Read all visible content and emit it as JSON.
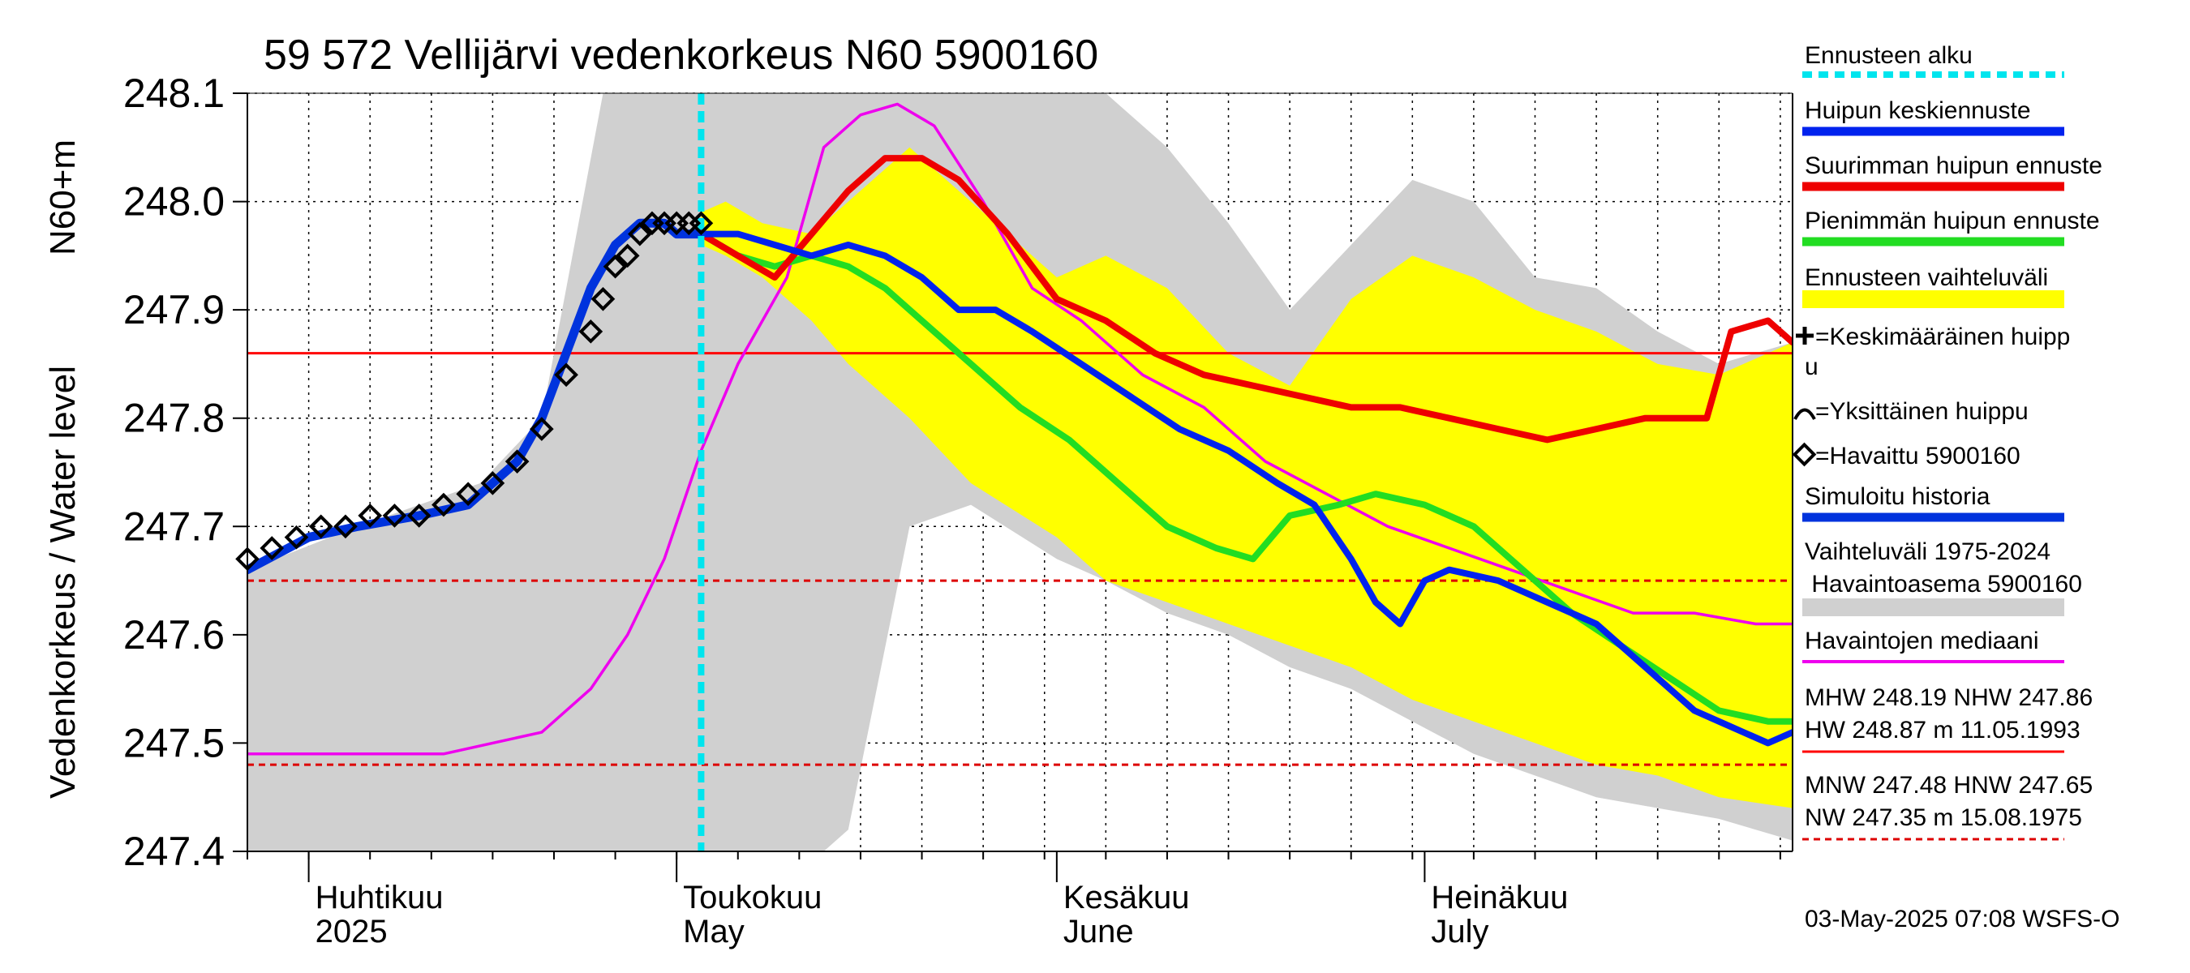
{
  "chart_data": {
    "type": "line",
    "title": "59 572 Vellijärvi vedenkorkeus N60 5900160",
    "ylabel": "Vedenkorkeus / Water level",
    "yunit": "N60+m",
    "ylim": [
      247.4,
      248.1
    ],
    "yticks": [
      "247.4",
      "247.5",
      "247.6",
      "247.7",
      "247.8",
      "247.9",
      "248.0",
      "248.1"
    ],
    "xlim": [
      "2025-03-27",
      "2025-07-31"
    ],
    "grid": true,
    "month_labels": [
      {
        "date": "2025-04-01",
        "fi": "Huhtikuu",
        "en": "2025"
      },
      {
        "date": "2025-05-01",
        "fi": "Toukokuu",
        "en": "May"
      },
      {
        "date": "2025-06-01",
        "fi": "Kesäkuu",
        "en": "June"
      },
      {
        "date": "2025-07-01",
        "fi": "Heinäkuu",
        "en": "July"
      }
    ],
    "forecast_start": "2025-05-03",
    "reference_lines": [
      {
        "label": "NHW",
        "value": 247.86,
        "color": "#ff0000",
        "style": "solid"
      },
      {
        "label": "HNW",
        "value": 247.65,
        "color": "#dd0000",
        "style": "dashed"
      },
      {
        "label": "MNW",
        "value": 247.48,
        "color": "#dd0000",
        "style": "dashed"
      }
    ],
    "historical_range": {
      "name": "Vaihteluväli 1975-2024 Havaintoasema 5900160",
      "color": "#d0d0d0",
      "x": [
        "2025-03-27",
        "2025-04-05",
        "2025-04-10",
        "2025-04-15",
        "2025-04-20",
        "2025-04-25",
        "2025-04-28",
        "2025-05-01",
        "2025-05-05",
        "2025-05-10",
        "2025-05-13",
        "2025-05-15",
        "2025-05-20",
        "2025-05-25",
        "2025-06-01",
        "2025-06-05",
        "2025-06-10",
        "2025-06-15",
        "2025-06-20",
        "2025-06-25",
        "2025-06-30",
        "2025-07-05",
        "2025-07-10",
        "2025-07-15",
        "2025-07-20",
        "2025-07-25",
        "2025-07-31"
      ],
      "upper": [
        247.66,
        247.7,
        247.72,
        247.74,
        247.8,
        248.1,
        248.1,
        248.1,
        248.1,
        248.1,
        248.1,
        248.1,
        248.1,
        248.1,
        248.1,
        248.1,
        248.05,
        247.98,
        247.9,
        247.96,
        248.02,
        248.0,
        247.93,
        247.92,
        247.88,
        247.85,
        247.87
      ],
      "lower": [
        247.4,
        247.4,
        247.4,
        247.4,
        247.4,
        247.4,
        247.4,
        247.4,
        247.4,
        247.4,
        247.4,
        247.42,
        247.7,
        247.72,
        247.67,
        247.65,
        247.62,
        247.6,
        247.57,
        247.55,
        247.52,
        247.49,
        247.47,
        247.45,
        247.44,
        247.43,
        247.41
      ]
    },
    "forecast_range": {
      "name": "Ennusteen vaihteluväli",
      "color": "#ffff00",
      "x": [
        "2025-05-03",
        "2025-05-05",
        "2025-05-08",
        "2025-05-12",
        "2025-05-15",
        "2025-05-20",
        "2025-05-25",
        "2025-06-01",
        "2025-06-05",
        "2025-06-10",
        "2025-06-15",
        "2025-06-20",
        "2025-06-25",
        "2025-06-30",
        "2025-07-05",
        "2025-07-10",
        "2025-07-15",
        "2025-07-20",
        "2025-07-25",
        "2025-07-31"
      ],
      "upper": [
        247.99,
        248.0,
        247.98,
        247.97,
        248.0,
        248.05,
        248.0,
        247.93,
        247.95,
        247.92,
        247.86,
        247.83,
        247.91,
        247.95,
        247.93,
        247.9,
        247.88,
        247.85,
        247.84,
        247.87
      ],
      "lower": [
        247.96,
        247.95,
        247.93,
        247.89,
        247.85,
        247.8,
        247.74,
        247.69,
        247.65,
        247.63,
        247.61,
        247.59,
        247.57,
        247.54,
        247.52,
        247.5,
        247.48,
        247.47,
        247.45,
        247.44
      ]
    },
    "series": [
      {
        "name": "Havaittu 5900160",
        "color": "#000000",
        "kind": "markers",
        "x": [
          "2025-03-27",
          "2025-03-29",
          "2025-03-31",
          "2025-04-02",
          "2025-04-04",
          "2025-04-06",
          "2025-04-08",
          "2025-04-10",
          "2025-04-12",
          "2025-04-14",
          "2025-04-16",
          "2025-04-18",
          "2025-04-20",
          "2025-04-22",
          "2025-04-24",
          "2025-04-25",
          "2025-04-26",
          "2025-04-27",
          "2025-04-28",
          "2025-04-29",
          "2025-04-30",
          "2025-05-01",
          "2025-05-02",
          "2025-05-03"
        ],
        "y": [
          247.67,
          247.68,
          247.69,
          247.7,
          247.7,
          247.71,
          247.71,
          247.71,
          247.72,
          247.73,
          247.74,
          247.76,
          247.79,
          247.84,
          247.88,
          247.91,
          247.94,
          247.95,
          247.97,
          247.98,
          247.98,
          247.98,
          247.98,
          247.98
        ]
      },
      {
        "name": "Simuloitu historia",
        "color": "#0033dd",
        "x": [
          "2025-03-27",
          "2025-04-01",
          "2025-04-05",
          "2025-04-10",
          "2025-04-14",
          "2025-04-18",
          "2025-04-20",
          "2025-04-22",
          "2025-04-24",
          "2025-04-26",
          "2025-04-28",
          "2025-04-30",
          "2025-05-01",
          "2025-05-02",
          "2025-05-03"
        ],
        "y": [
          247.66,
          247.69,
          247.7,
          247.71,
          247.72,
          247.76,
          247.8,
          247.86,
          247.92,
          247.96,
          247.98,
          247.98,
          247.97,
          247.97,
          247.97
        ]
      },
      {
        "name": "Huipun keskiennuste",
        "color": "#0022ee",
        "x": [
          "2025-05-03",
          "2025-05-06",
          "2025-05-09",
          "2025-05-12",
          "2025-05-15",
          "2025-05-18",
          "2025-05-21",
          "2025-05-24",
          "2025-05-27",
          "2025-05-30",
          "2025-06-03",
          "2025-06-07",
          "2025-06-11",
          "2025-06-15",
          "2025-06-19",
          "2025-06-22",
          "2025-06-25",
          "2025-06-27",
          "2025-06-29",
          "2025-07-01",
          "2025-07-03",
          "2025-07-07",
          "2025-07-11",
          "2025-07-15",
          "2025-07-19",
          "2025-07-23",
          "2025-07-27",
          "2025-07-29",
          "2025-07-31"
        ],
        "y": [
          247.97,
          247.97,
          247.96,
          247.95,
          247.96,
          247.95,
          247.93,
          247.9,
          247.9,
          247.88,
          247.85,
          247.82,
          247.79,
          247.77,
          247.74,
          247.72,
          247.67,
          247.63,
          247.61,
          247.65,
          247.66,
          247.65,
          247.63,
          247.61,
          247.57,
          247.53,
          247.51,
          247.5,
          247.51
        ]
      },
      {
        "name": "Suurimman huipun ennuste",
        "color": "#ee0000",
        "x": [
          "2025-05-03",
          "2025-05-06",
          "2025-05-09",
          "2025-05-12",
          "2025-05-15",
          "2025-05-18",
          "2025-05-21",
          "2025-05-24",
          "2025-05-28",
          "2025-06-01",
          "2025-06-05",
          "2025-06-09",
          "2025-06-13",
          "2025-06-17",
          "2025-06-21",
          "2025-06-25",
          "2025-06-29",
          "2025-07-03",
          "2025-07-07",
          "2025-07-11",
          "2025-07-15",
          "2025-07-19",
          "2025-07-22",
          "2025-07-24",
          "2025-07-26",
          "2025-07-29",
          "2025-07-31"
        ],
        "y": [
          247.97,
          247.95,
          247.93,
          247.97,
          248.01,
          248.04,
          248.04,
          248.02,
          247.97,
          247.91,
          247.89,
          247.86,
          247.84,
          247.83,
          247.82,
          247.81,
          247.81,
          247.8,
          247.79,
          247.78,
          247.79,
          247.8,
          247.8,
          247.8,
          247.88,
          247.89,
          247.87
        ]
      },
      {
        "name": "Pienimmän huipun ennuste",
        "color": "#22dd22",
        "x": [
          "2025-05-03",
          "2025-05-06",
          "2025-05-09",
          "2025-05-12",
          "2025-05-15",
          "2025-05-18",
          "2025-05-21",
          "2025-05-25",
          "2025-05-29",
          "2025-06-02",
          "2025-06-06",
          "2025-06-10",
          "2025-06-14",
          "2025-06-17",
          "2025-06-20",
          "2025-06-24",
          "2025-06-27",
          "2025-07-01",
          "2025-07-05",
          "2025-07-09",
          "2025-07-13",
          "2025-07-17",
          "2025-07-21",
          "2025-07-25",
          "2025-07-29",
          "2025-07-31"
        ],
        "y": [
          247.97,
          247.95,
          247.94,
          247.95,
          247.94,
          247.92,
          247.89,
          247.85,
          247.81,
          247.78,
          247.74,
          247.7,
          247.68,
          247.67,
          247.71,
          247.72,
          247.73,
          247.72,
          247.7,
          247.66,
          247.62,
          247.59,
          247.56,
          247.53,
          247.52,
          247.52
        ]
      },
      {
        "name": "Havaintojen mediaani",
        "color": "#ee00ee",
        "x": [
          "2025-03-27",
          "2025-04-05",
          "2025-04-12",
          "2025-04-16",
          "2025-04-20",
          "2025-04-24",
          "2025-04-27",
          "2025-04-30",
          "2025-05-03",
          "2025-05-06",
          "2025-05-10",
          "2025-05-13",
          "2025-05-16",
          "2025-05-19",
          "2025-05-22",
          "2025-05-26",
          "2025-05-30",
          "2025-06-03",
          "2025-06-08",
          "2025-06-13",
          "2025-06-18",
          "2025-06-23",
          "2025-06-28",
          "2025-07-03",
          "2025-07-08",
          "2025-07-13",
          "2025-07-18",
          "2025-07-23",
          "2025-07-28",
          "2025-07-31"
        ],
        "y": [
          247.49,
          247.49,
          247.49,
          247.5,
          247.51,
          247.55,
          247.6,
          247.67,
          247.77,
          247.85,
          247.93,
          248.05,
          248.08,
          248.09,
          248.07,
          248.0,
          247.92,
          247.89,
          247.84,
          247.81,
          247.76,
          247.73,
          247.7,
          247.68,
          247.66,
          247.64,
          247.62,
          247.62,
          247.61,
          247.61
        ]
      }
    ],
    "legend": {
      "position": "right",
      "items": [
        {
          "label": "Ennusteen alku",
          "color": "#00e5ee",
          "style": "dotted"
        },
        {
          "label": "Huipun keskiennuste",
          "color": "#0022ee",
          "style": "line"
        },
        {
          "label": "Suurimman huipun ennuste",
          "color": "#ee0000",
          "style": "line"
        },
        {
          "label": "Pienimmän huipun ennuste",
          "color": "#22dd22",
          "style": "line"
        },
        {
          "label": "Ennusteen vaihteluväli",
          "color": "#ffff00",
          "style": "band"
        },
        {
          "label_line1": "=Keskimääräinen huipp",
          "label_line2": "u",
          "symbol": "plus"
        },
        {
          "label": "=Yksittäinen huippu",
          "symbol": "arc"
        },
        {
          "label": "=Havaittu 5900160",
          "symbol": "diamond"
        },
        {
          "label": "Simuloitu historia",
          "color": "#0033dd",
          "style": "line"
        },
        {
          "label_line1": "Vaihteluväli 1975-2024",
          "label_line2": " Havaintoasema 5900160",
          "color": "#d0d0d0",
          "style": "band"
        },
        {
          "label": "Havaintojen mediaani",
          "color": "#ee00ee",
          "style": "line"
        }
      ],
      "stats": {
        "line1": "MHW 248.19 NHW 247.86",
        "line2": "HW 248.87 m 11.05.1993",
        "line3": "MNW 247.48 HNW 247.65",
        "line4": "NW 247.35 m 15.08.1975"
      }
    },
    "footer": "03-May-2025 07:08 WSFS-O"
  }
}
